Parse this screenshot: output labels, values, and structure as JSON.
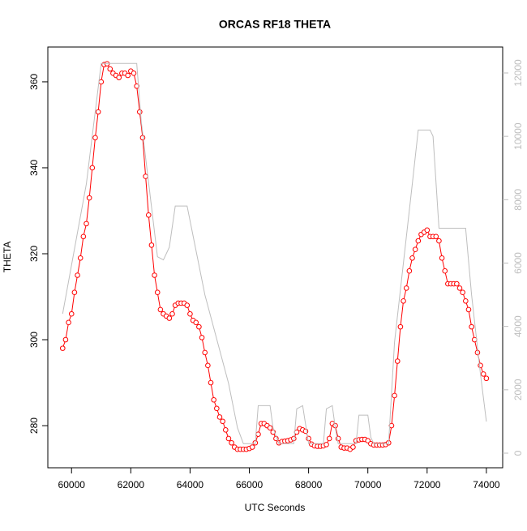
{
  "chart_data": {
    "type": "line",
    "title": "ORCAS RF18 THETA",
    "x_label": "UTC Seconds",
    "y_label": "THETA",
    "xlim": [
      59200,
      74550
    ],
    "xticks": [
      60000,
      62000,
      64000,
      66000,
      68000,
      70000,
      72000,
      74000
    ],
    "ylim": [
      270.2,
      368.1
    ],
    "yticks": [
      280,
      300,
      320,
      340,
      360
    ],
    "y2lim": [
      -461,
      12819
    ],
    "y2ticks": [
      0,
      2000,
      4000,
      6000,
      8000,
      10000,
      12000
    ],
    "series": [
      {
        "color": "#ff0000",
        "marker": "circle",
        "x": [
          59700,
          59800,
          59900,
          60000,
          60100,
          60200,
          60300,
          60400,
          60500,
          60600,
          60700,
          60800,
          60900,
          61000,
          61100,
          61200,
          61300,
          61400,
          61500,
          61600,
          61700,
          61800,
          61900,
          62000,
          62100,
          62200,
          62300,
          62400,
          62500,
          62600,
          62700,
          62800,
          62900,
          63000,
          63100,
          63200,
          63300,
          63400,
          63500,
          63600,
          63700,
          63800,
          63900,
          64000,
          64100,
          64200,
          64300,
          64400,
          64500,
          64600,
          64700,
          64800,
          64900,
          65000,
          65100,
          65200,
          65300,
          65400,
          65500,
          65600,
          65700,
          65800,
          65900,
          66000,
          66100,
          66200,
          66300,
          66400,
          66500,
          66600,
          66700,
          66800,
          66900,
          67000,
          67100,
          67200,
          67300,
          67400,
          67500,
          67600,
          67700,
          67800,
          67900,
          68000,
          68100,
          68200,
          68300,
          68400,
          68500,
          68600,
          68700,
          68800,
          68900,
          69000,
          69100,
          69200,
          69300,
          69400,
          69500,
          69600,
          69700,
          69800,
          69900,
          70000,
          70100,
          70200,
          70300,
          70400,
          70500,
          70600,
          70700,
          70800,
          70900,
          71000,
          71100,
          71200,
          71300,
          71400,
          71500,
          71600,
          71700,
          71800,
          71900,
          72000,
          72100,
          72200,
          72300,
          72400,
          72500,
          72600,
          72700,
          72800,
          72900,
          73000,
          73100,
          73200,
          73300,
          73400,
          73500,
          73600,
          73700,
          73800,
          73900,
          74000
        ],
        "values": [
          298,
          300,
          304,
          306,
          311,
          315,
          319,
          324,
          327,
          333,
          340,
          347,
          353,
          360,
          364,
          364.2,
          363,
          362,
          361.5,
          361,
          362,
          362,
          361.5,
          362.5,
          362,
          359,
          353,
          347,
          338,
          329,
          322,
          315,
          311,
          307,
          306,
          305.5,
          305,
          306,
          308,
          308.5,
          308.5,
          308.5,
          308,
          306,
          304.5,
          304,
          303,
          300.5,
          297,
          294,
          290,
          286,
          284,
          282,
          281,
          279,
          277,
          276,
          275,
          274.5,
          274.5,
          274.5,
          274.5,
          274.7,
          275,
          276,
          278,
          280.5,
          280.5,
          280,
          279.5,
          278.5,
          277,
          276,
          276.3,
          276.4,
          276.5,
          276.7,
          277,
          278.5,
          279.3,
          279,
          278.7,
          277,
          275.7,
          275.3,
          275.2,
          275.2,
          275.3,
          275.6,
          277,
          280.5,
          280,
          277,
          275,
          274.8,
          274.8,
          274.5,
          275,
          276.5,
          276.7,
          276.8,
          276.8,
          276.5,
          275.8,
          275.5,
          275.5,
          275.5,
          275.5,
          275.6,
          276,
          280,
          287,
          295,
          303,
          309,
          312,
          316,
          319,
          321,
          323,
          324.5,
          325,
          325.5,
          324,
          324,
          324,
          323,
          319,
          316,
          313,
          313,
          313,
          313,
          312,
          311,
          309,
          307,
          303,
          300,
          297,
          294,
          292,
          291
        ]
      },
      {
        "color": "#bebebe",
        "axis": "y2",
        "x": [
          59700,
          60500,
          61000,
          62200,
          62350,
          62900,
          63100,
          63300,
          63500,
          63900,
          64500,
          65300,
          65600,
          65800,
          66200,
          66300,
          66700,
          66800,
          67000,
          67500,
          67600,
          67800,
          67900,
          68000,
          68500,
          68600,
          68800,
          68900,
          69000,
          69600,
          69700,
          70000,
          70100,
          70200,
          70700,
          70900,
          71500,
          71700,
          72100,
          72200,
          72400,
          73300,
          73500,
          73800,
          74000
        ],
        "values": [
          4400,
          8500,
          12300,
          12300,
          10500,
          6200,
          6100,
          6500,
          7800,
          7800,
          5000,
          2200,
          800,
          300,
          300,
          1500,
          1500,
          800,
          300,
          300,
          1400,
          1500,
          900,
          300,
          300,
          1400,
          1500,
          800,
          300,
          300,
          1200,
          1200,
          500,
          300,
          300,
          3500,
          8500,
          10200,
          10200,
          10000,
          7100,
          7100,
          5000,
          2500,
          1000
        ]
      }
    ]
  }
}
